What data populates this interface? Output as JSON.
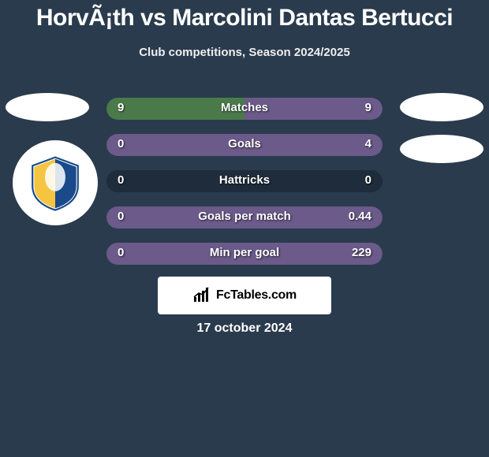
{
  "title": "HorvÃ¡th vs Marcolini Dantas Bertucci",
  "subtitle": "Club competitions, Season 2024/2025",
  "date": "17 october 2024",
  "brand": "FcTables.com",
  "colors": {
    "bg": "#2a3b4d",
    "bar_left": "#4a7a4a",
    "bar_right": "#6b5a8a",
    "bar_track": "#1e2c3b",
    "text": "#ffffff"
  },
  "rows": [
    {
      "label": "Matches",
      "left": "9",
      "right": "9",
      "left_pct": 50,
      "right_pct": 50
    },
    {
      "label": "Goals",
      "left": "0",
      "right": "4",
      "left_pct": 0,
      "right_pct": 100
    },
    {
      "label": "Hattricks",
      "left": "0",
      "right": "0",
      "left_pct": 0,
      "right_pct": 0
    },
    {
      "label": "Goals per match",
      "left": "0",
      "right": "0.44",
      "left_pct": 0,
      "right_pct": 100
    },
    {
      "label": "Min per goal",
      "left": "0",
      "right": "229",
      "left_pct": 0,
      "right_pct": 100
    }
  ]
}
